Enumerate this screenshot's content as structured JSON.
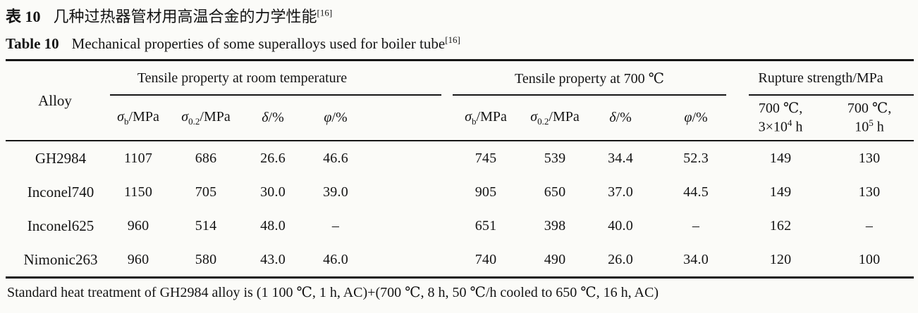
{
  "titles": {
    "zh": {
      "label": "表 10",
      "text": "几种过热器管材用高温合金的力学性能",
      "ref": "[16]"
    },
    "en": {
      "label": "Table 10",
      "text": "Mechanical properties of some superalloys used for boiler tube",
      "ref": "[16]"
    }
  },
  "table": {
    "alloy_header": "Alloy",
    "groups": [
      {
        "label": "Tensile property at room temperature",
        "span": 4
      },
      {
        "label": "Tensile property at 700 ℃",
        "span": 4
      },
      {
        "label": "Rupture strength/MPa",
        "span": 2
      }
    ],
    "sub_headers": [
      {
        "key": "rt-sigma-b",
        "html": "<i>σ</i><sub>b</sub>/MPa"
      },
      {
        "key": "rt-sigma-0-2",
        "html": "<i>σ</i><sub>0.2</sub>/MPa"
      },
      {
        "key": "rt-delta",
        "html": "<i>δ</i>/%"
      },
      {
        "key": "rt-phi",
        "html": "<i>φ</i>/%"
      },
      {
        "key": "ht-sigma-b",
        "html": "<i>σ</i><sub>b</sub>/MPa"
      },
      {
        "key": "ht-sigma-0-2",
        "html": "<i>σ</i><sub>0.2</sub>/MPa"
      },
      {
        "key": "ht-delta",
        "html": "<i>δ</i>/%"
      },
      {
        "key": "ht-phi",
        "html": "<i>φ</i>/%"
      },
      {
        "key": "rupture-700c-3e4h",
        "html": "700 ℃,<br>3×10<sup>4</sup> h"
      },
      {
        "key": "rupture-700c-1e5h",
        "html": "700 ℃,<br>10<sup>5</sup> h"
      }
    ],
    "rows": [
      {
        "alloy": "GH2984",
        "values": [
          "1107",
          "686",
          "26.6",
          "46.6",
          "745",
          "539",
          "34.4",
          "52.3",
          "149",
          "130"
        ]
      },
      {
        "alloy": "Inconel740",
        "values": [
          "1150",
          "705",
          "30.0",
          "39.0",
          "905",
          "650",
          "37.0",
          "44.5",
          "149",
          "130"
        ]
      },
      {
        "alloy": "Inconel625",
        "values": [
          "960",
          "514",
          "48.0",
          "–",
          "651",
          "398",
          "40.0",
          "–",
          "162",
          "–"
        ]
      },
      {
        "alloy": "Nimonic263",
        "values": [
          "960",
          "580",
          "43.0",
          "46.0",
          "740",
          "490",
          "26.0",
          "34.0",
          "120",
          "100"
        ]
      }
    ]
  },
  "footnote": "Standard heat treatment of GH2984 alloy is (1 100 ℃, 1 h, AC)+(700 ℃, 8 h, 50 ℃/h cooled to 650 ℃, 16 h, AC)",
  "colors": {
    "background": "#fbfbf8",
    "text": "#141414",
    "rule": "#161616"
  }
}
